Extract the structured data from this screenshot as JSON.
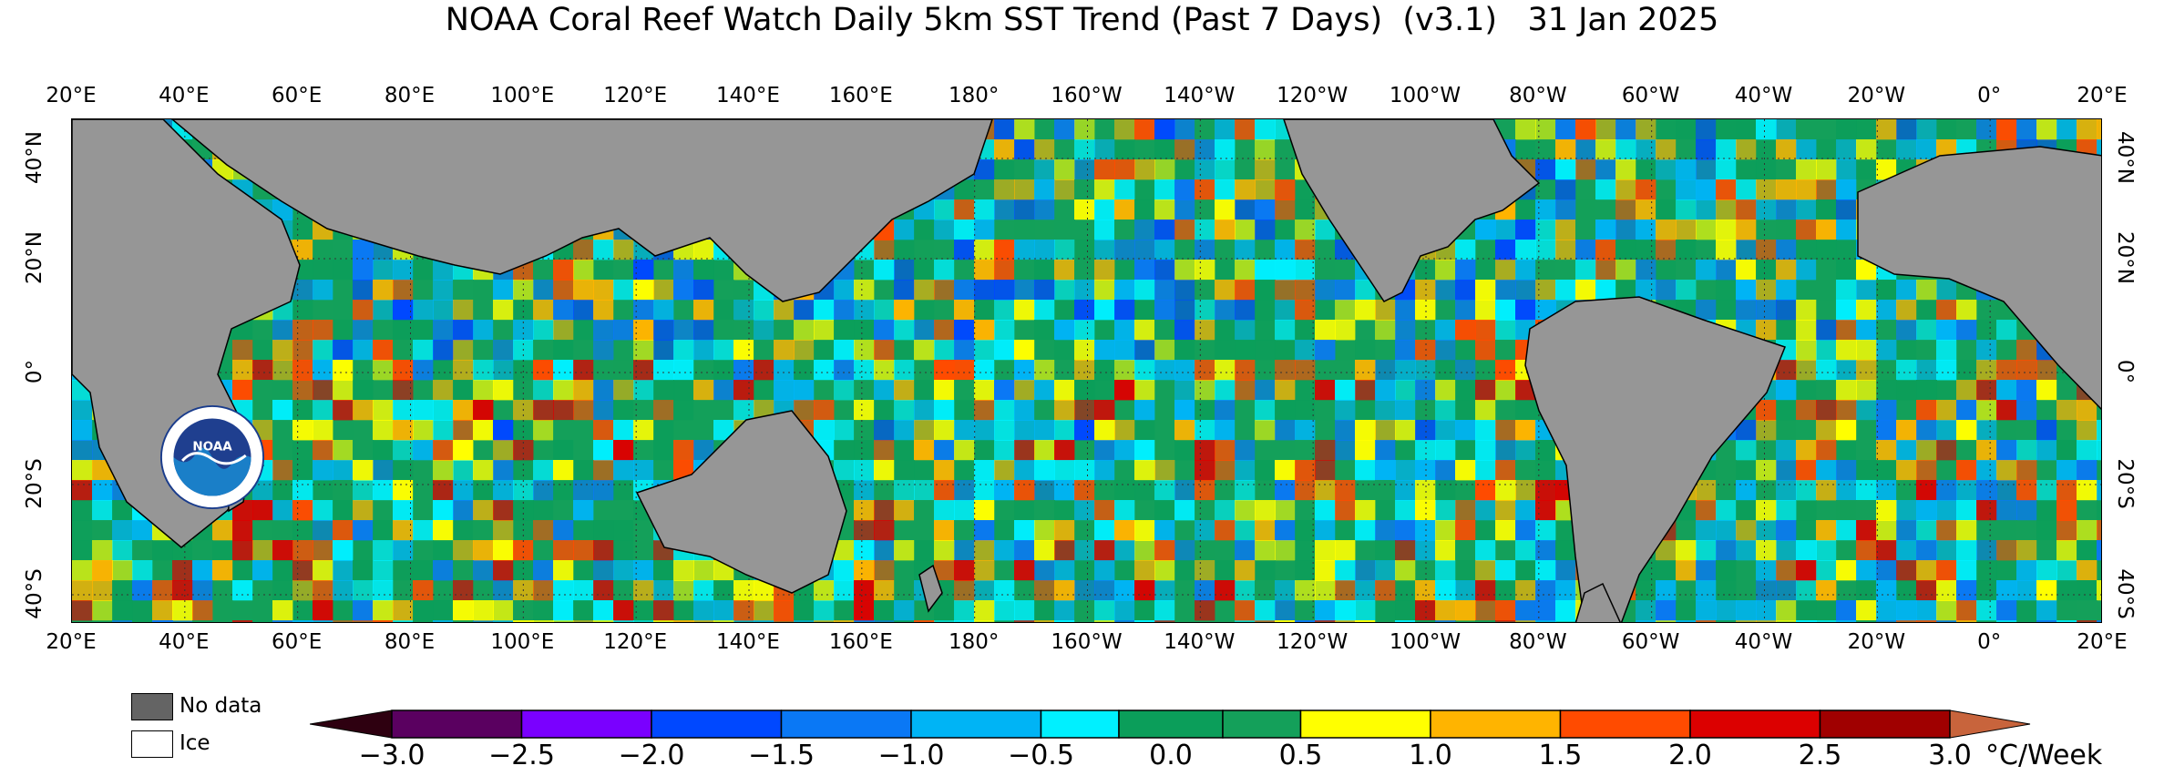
{
  "title": "NOAA Coral Reef Watch Daily 5km SST Trend (Past 7 Days)  (v3.1)   31 Jan 2025",
  "lon_labels": [
    "20°E",
    "40°E",
    "60°E",
    "80°E",
    "100°E",
    "120°E",
    "140°E",
    "160°E",
    "180°",
    "160°W",
    "140°W",
    "120°W",
    "100°W",
    "80°W",
    "60°W",
    "40°W",
    "20°W",
    "0°",
    "20°E"
  ],
  "lat_labels": [
    "40°N",
    "20°N",
    "0°",
    "20°S",
    "40°S"
  ],
  "logo": {
    "name": "NOAA",
    "ring_text": "NATIONAL OCEANIC AND ATMOSPHERIC ADMINISTRATION · U.S. DEPARTMENT OF COMMERCE"
  },
  "legend": {
    "no_data": "No data",
    "ice": "Ice"
  },
  "colorbar": {
    "ticks": [
      "−3.0",
      "−2.5",
      "−2.0",
      "−1.5",
      "−1.0",
      "−0.5",
      "0.0",
      "0.5",
      "1.0",
      "1.5",
      "2.0",
      "2.5",
      "3.0"
    ],
    "unit": "°C/Week",
    "range": [
      -3.0,
      3.0
    ],
    "bins": [
      -3.0,
      -2.5,
      -2.0,
      -1.5,
      -1.0,
      -0.5,
      -0.2,
      0.2,
      0.5,
      1.0,
      1.5,
      2.0,
      2.5,
      3.0
    ],
    "colors": [
      "#5a0060",
      "#7a00ff",
      "#0048ff",
      "#0a78f5",
      "#00b4f5",
      "#00f0ff",
      "#0b9e5a",
      "#14a05a",
      "#ffff00",
      "#ffb400",
      "#ff4b00",
      "#dc0000",
      "#a00000",
      "#640000"
    ],
    "under_color": "#2e0010",
    "over_color": "#c8643c"
  },
  "colors": {
    "land": "#969696",
    "no_data": "#646464",
    "ocean_base": "#14a05a"
  }
}
